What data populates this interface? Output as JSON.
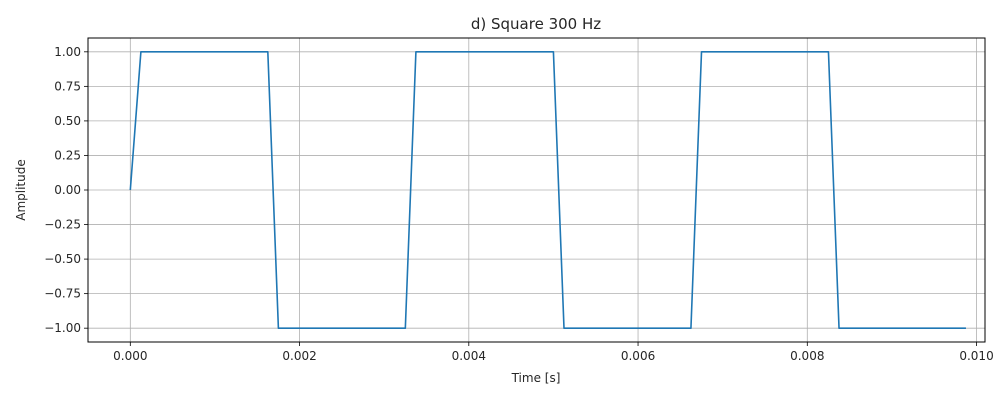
{
  "chart_data": {
    "type": "line",
    "title": "d) Square 300 Hz",
    "xlabel": "Time [s]",
    "ylabel": "Amplitude",
    "xlim": [
      -0.0005,
      0.0101
    ],
    "ylim": [
      -1.1,
      1.1
    ],
    "grid": true,
    "line_color": "#1f77b4",
    "x_ticks": [
      0.0,
      0.002,
      0.004,
      0.006,
      0.008,
      0.01
    ],
    "x_tick_labels": [
      "0.000",
      "0.002",
      "0.004",
      "0.006",
      "0.008",
      "0.010"
    ],
    "y_ticks": [
      1.0,
      0.75,
      0.5,
      0.25,
      0.0,
      -0.25,
      -0.5,
      -0.75,
      -1.0
    ],
    "y_tick_labels": [
      "1.00",
      "0.75",
      "0.50",
      "0.25",
      "0.00",
      "−0.25",
      "−0.50",
      "−0.75",
      "−1.00"
    ],
    "series": [
      {
        "x": [
          0.0,
          0.000125,
          0.001625,
          0.00175,
          0.00325,
          0.003375,
          0.005,
          0.005125,
          0.006625,
          0.00675,
          0.00825,
          0.008375,
          0.009875
        ],
        "y": [
          0.0,
          1.0,
          1.0,
          -1.0,
          -1.0,
          1.0,
          1.0,
          -1.0,
          -1.0,
          1.0,
          1.0,
          -1.0,
          -1.0
        ]
      }
    ]
  }
}
